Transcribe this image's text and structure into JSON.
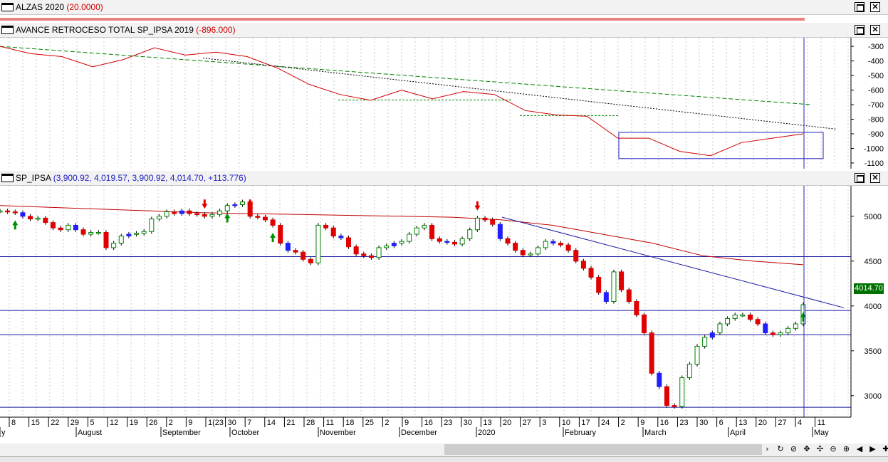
{
  "panes": [
    {
      "title": "ALZAS 2020",
      "value": "(20.0000)"
    },
    {
      "title": "AVANCE RETROCESO TOTAL SP_IPSA 2019",
      "value": "(-896.000)"
    },
    {
      "title": "SP_IPSA",
      "value": "(3,900.92, 4,019.57, 3,900.92, 4,014.70, +113.776)"
    }
  ],
  "window_buttons": {
    "maximize": "",
    "close": "✕"
  },
  "price_tag": "4014.70",
  "colors": {
    "up_candle": "#ffffff",
    "down_candle": "#e00000",
    "blue_candle": "#2020ff",
    "price_line": "#d00000",
    "ma_line": "#c00000",
    "trend_line": "#1a1aa0",
    "green_dash": "#008000",
    "indicator": "#d00000"
  },
  "chart_data": [
    {
      "type": "line",
      "name": "AVANCE RETROCESO TOTAL SP_IPSA 2019",
      "y_ticks": [
        -300,
        -400,
        -500,
        -600,
        -700,
        -800,
        -900,
        -1000,
        -1100
      ],
      "ylim": [
        -1110,
        -270
      ],
      "x": [
        "2019-07-25",
        "2019-08-05",
        "2019-08-15",
        "2019-08-26",
        "2019-09-05",
        "2019-09-16",
        "2019-09-26",
        "2019-10-07",
        "2019-10-17",
        "2019-10-28",
        "2019-11-08",
        "2019-11-18",
        "2019-11-28",
        "2019-12-09",
        "2019-12-19",
        "2020-01-02",
        "2020-01-13",
        "2020-01-23",
        "2020-02-03",
        "2020-02-13",
        "2020-02-24",
        "2020-03-05",
        "2020-03-16",
        "2020-03-26",
        "2020-04-06",
        "2020-04-16",
        "2020-04-27"
      ],
      "values": [
        -300,
        -350,
        -370,
        -440,
        -390,
        -310,
        -360,
        -340,
        -370,
        -450,
        -560,
        -630,
        -670,
        -600,
        -660,
        -610,
        -630,
        -740,
        -770,
        -780,
        -930,
        -930,
        -1020,
        -1050,
        -960,
        -930,
        -900
      ],
      "markers": {
        "horizontal_reference": [
          -300,
          -900,
          -1000,
          -1100
        ]
      }
    },
    {
      "type": "candlestick",
      "name": "SP_IPSA",
      "y_ticks": [
        3000,
        3500,
        4000,
        4500,
        5000
      ],
      "ylim": [
        2760,
        5340
      ],
      "x_ticks": [
        "8",
        "15",
        "22",
        "29",
        "5",
        "12",
        "19",
        "26",
        "2",
        "9",
        "1(23",
        "30",
        "7",
        "14",
        "21",
        "28",
        "11",
        "18",
        "25",
        "2",
        "9",
        "16",
        "23",
        "30",
        "13",
        "20",
        "27",
        "3",
        "10",
        "17",
        "24",
        "2",
        "9",
        "16",
        "23",
        "30",
        "6",
        "13",
        "20",
        "27",
        "4",
        "11"
      ],
      "month_labels": [
        "y",
        "August",
        "September",
        "October",
        "November",
        "December",
        "2020",
        "February",
        "March",
        "April",
        "May"
      ],
      "close": [
        5060,
        5050,
        5040,
        5000,
        4970,
        4980,
        4930,
        4870,
        4850,
        4900,
        4850,
        4800,
        4820,
        4820,
        4650,
        4700,
        4780,
        4800,
        4810,
        4830,
        4970,
        5000,
        5050,
        5030,
        5060,
        5030,
        5020,
        5000,
        5020,
        5060,
        5120,
        5130,
        5160,
        5000,
        4990,
        4960,
        4900,
        4700,
        4620,
        4600,
        4520,
        4480,
        4900,
        4870,
        4780,
        4760,
        4660,
        4580,
        4560,
        4540,
        4650,
        4670,
        4700,
        4720,
        4800,
        4870,
        4900,
        4750,
        4720,
        4710,
        4690,
        4750,
        4850,
        4980,
        4960,
        4910,
        4750,
        4700,
        4620,
        4570,
        4580,
        4650,
        4720,
        4700,
        4680,
        4620,
        4500,
        4420,
        4320,
        4150,
        4050,
        4380,
        4180,
        4050,
        3900,
        3700,
        3250,
        3100,
        2890,
        2880,
        3200,
        3350,
        3550,
        3650,
        3700,
        3800,
        3860,
        3900,
        3900,
        3850,
        3800,
        3700,
        3680,
        3700,
        3750,
        3800,
        4014
      ],
      "moving_average": [
        5120,
        5100,
        5080,
        5060,
        5040,
        5030,
        5020,
        5010,
        5000,
        4990,
        4960,
        4900,
        4800,
        4700,
        4560,
        4500,
        4460
      ],
      "horizontal_levels": [
        4550,
        3950,
        3680,
        2870
      ],
      "price_marker": 4014.7
    }
  ]
}
